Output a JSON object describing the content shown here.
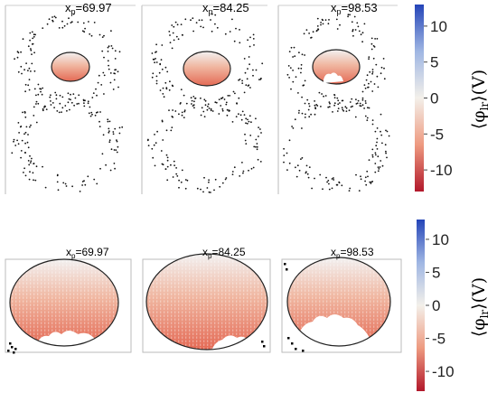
{
  "chart_data": {
    "type": "heatmap",
    "colormap": {
      "low": "#b2182b",
      "mid": "#f3f0ea",
      "high": "#2545b8"
    },
    "colorbar": {
      "label_main": "⟨φ",
      "label_sub": "lr",
      "label_unit": "⟩(V)",
      "range": [
        -13,
        13
      ],
      "ticks": [
        {
          "value": 10,
          "label": "10"
        },
        {
          "value": 5,
          "label": "5"
        },
        {
          "value": 0,
          "label": "0"
        },
        {
          "value": -5,
          "label": "-5"
        },
        {
          "value": -10,
          "label": "-10"
        }
      ]
    },
    "top_row": [
      {
        "x_main": "x",
        "x_sub": "p",
        "x_value": "=69.97"
      },
      {
        "x_main": "x",
        "x_sub": "p",
        "x_value": "=84.25"
      },
      {
        "x_main": "x",
        "x_sub": "p",
        "x_value": "=98.53"
      }
    ],
    "bottom_row": [
      {
        "x_main": "x",
        "x_sub": "p",
        "x_value": "=69.97"
      },
      {
        "x_main": "x",
        "x_sub": "p",
        "x_value": "=84.25"
      },
      {
        "x_main": "x",
        "x_sub": "p",
        "x_value": "=98.53"
      }
    ]
  }
}
